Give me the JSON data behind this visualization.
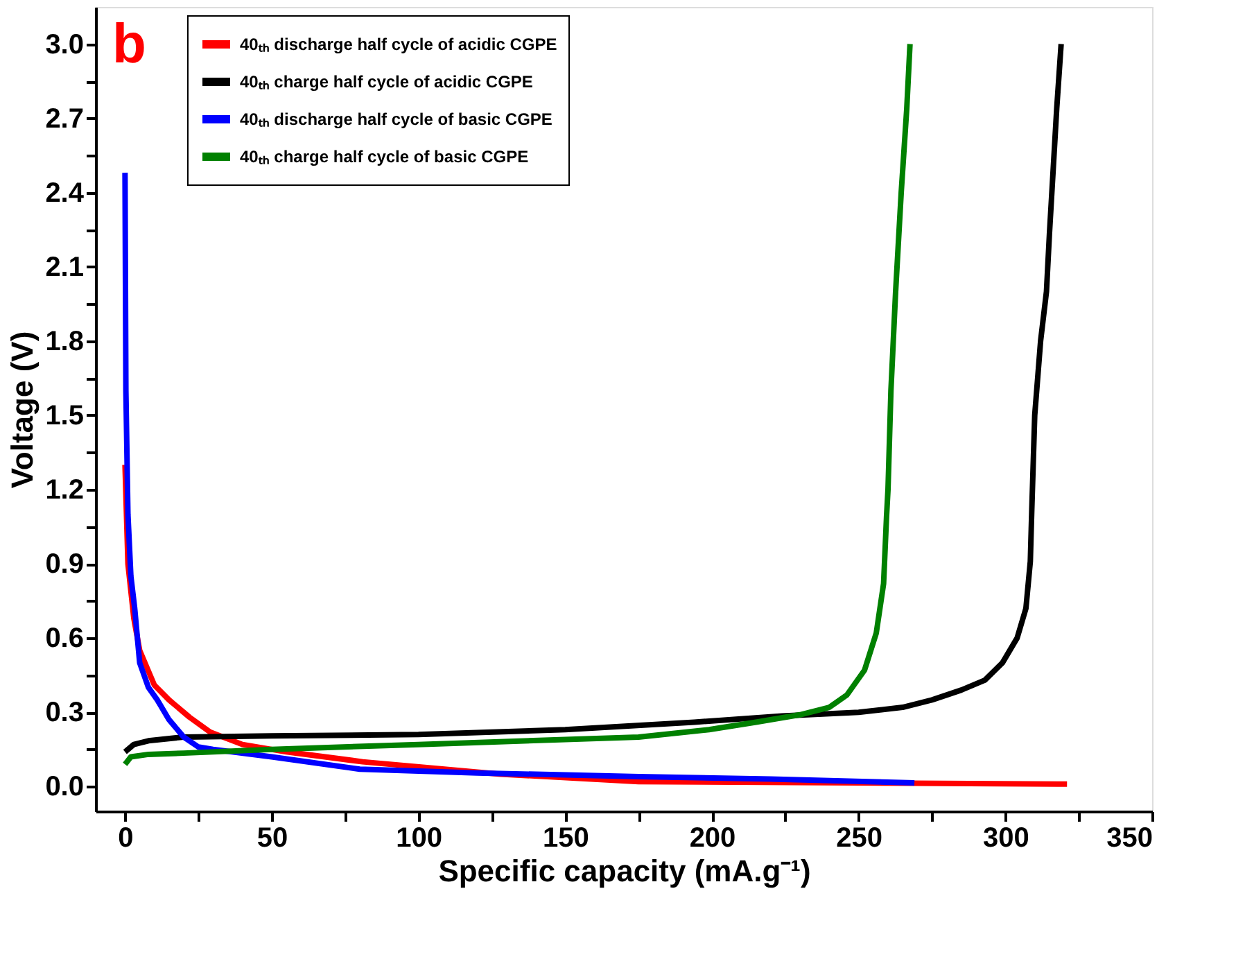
{
  "chart_data": {
    "type": "line",
    "xlabel": "Specific capacity (mA.g⁻¹)",
    "ylabel": "Voltage (V)",
    "annotations": [
      "b"
    ],
    "xlim": [
      -10,
      350
    ],
    "ylim": [
      -0.1,
      3.15
    ],
    "xticks": [
      0,
      {
        "value": 25,
        "label": null
      },
      50,
      {
        "value": 75,
        "label": null
      },
      100,
      {
        "value": 125,
        "label": null
      },
      150,
      {
        "value": 175,
        "label": null
      },
      200,
      {
        "value": 225,
        "label": null
      },
      250,
      {
        "value": 275,
        "label": null
      },
      300,
      {
        "value": 325,
        "label": null
      },
      350
    ],
    "yticks": [
      {
        "value": 0,
        "label": "0.0"
      },
      {
        "value": 0.15,
        "label": null
      },
      {
        "value": 0.3,
        "label": "0.3"
      },
      {
        "value": 0.45,
        "label": null
      },
      {
        "value": 0.6,
        "label": "0.6"
      },
      {
        "value": 0.75,
        "label": null
      },
      {
        "value": 0.9,
        "label": "0.9"
      },
      {
        "value": 1.05,
        "label": null
      },
      {
        "value": 1.2,
        "label": "1.2"
      },
      {
        "value": 1.35,
        "label": null
      },
      {
        "value": 1.5,
        "label": "1.5"
      },
      {
        "value": 1.65,
        "label": null
      },
      {
        "value": 1.8,
        "label": "1.8"
      },
      {
        "value": 1.95,
        "label": null
      },
      {
        "value": 2.1,
        "label": "2.1"
      },
      {
        "value": 2.25,
        "label": null
      },
      {
        "value": 2.4,
        "label": "2.4"
      },
      {
        "value": 2.55,
        "label": null
      },
      {
        "value": 2.7,
        "label": "2.7"
      },
      {
        "value": 2.85,
        "label": null
      },
      {
        "value": 3,
        "label": "3.0"
      }
    ],
    "grid": false,
    "legend": "top left",
    "line_style": "solid",
    "series": [
      {
        "name": "40ₜₕ discharge half cycle of acidic CGPE",
        "color": "#ff0000",
        "x": [
          0,
          1,
          3,
          5,
          10,
          15,
          22,
          29,
          40,
          55,
          81,
          128,
          175,
          250,
          321
        ],
        "values": [
          1.3,
          0.9,
          0.68,
          0.55,
          0.41,
          0.35,
          0.28,
          0.22,
          0.17,
          0.14,
          0.1,
          0.05,
          0.02,
          0.015,
          0.01
        ]
      },
      {
        "name": "40ₜₕ charge half cycle of acidic CGPE",
        "color": "#000000",
        "x": [
          0,
          3,
          8,
          20,
          50,
          100,
          150,
          194,
          224,
          250,
          265,
          275,
          285,
          293,
          299,
          304,
          307,
          308.5,
          309,
          310,
          312,
          314,
          315,
          317.5,
          319
        ],
        "values": [
          0.14,
          0.17,
          0.185,
          0.2,
          0.205,
          0.21,
          0.23,
          0.26,
          0.285,
          0.3,
          0.32,
          0.35,
          0.39,
          0.43,
          0.5,
          0.6,
          0.72,
          0.91,
          1.12,
          1.5,
          1.8,
          2.0,
          2.23,
          2.74,
          3.0
        ]
      },
      {
        "name": "40ₜₕ discharge half cycle of basic CGPE",
        "color": "#0000ff",
        "x": [
          0,
          0.3,
          1,
          2,
          3.3,
          5,
          8,
          11,
          15,
          20,
          25,
          30,
          50,
          80,
          120,
          175,
          220,
          269
        ],
        "values": [
          2.48,
          1.6,
          1.1,
          0.85,
          0.72,
          0.5,
          0.4,
          0.35,
          0.27,
          0.2,
          0.16,
          0.15,
          0.12,
          0.07,
          0.055,
          0.04,
          0.03,
          0.015
        ]
      },
      {
        "name": "40ₜₕ charge half cycle of basic CGPE",
        "color": "#008000",
        "x": [
          0,
          2,
          8,
          20,
          50,
          100,
          150,
          175,
          199,
          215,
          230,
          240,
          246,
          252,
          256,
          258.5,
          259.5,
          260,
          261,
          262.6,
          264.5,
          266.4,
          267.5
        ],
        "values": [
          0.09,
          0.12,
          0.13,
          0.135,
          0.15,
          0.17,
          0.19,
          0.2,
          0.23,
          0.26,
          0.29,
          0.32,
          0.37,
          0.47,
          0.62,
          0.82,
          1.09,
          1.2,
          1.6,
          2.0,
          2.4,
          2.74,
          3.0
        ]
      }
    ]
  }
}
